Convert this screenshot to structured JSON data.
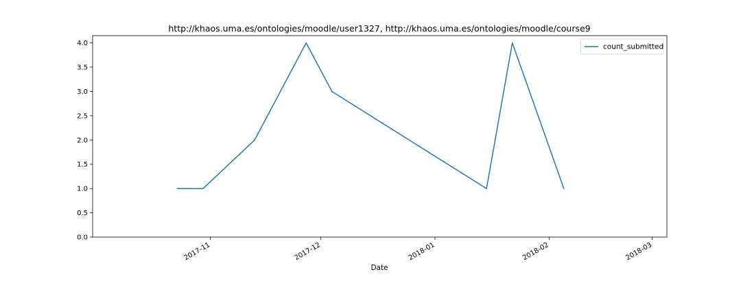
{
  "chart_data": {
    "type": "line",
    "title": "http://khaos.uma.es/ontologies/moodle/user1327, http://khaos.uma.es/ontologies/moodle/course9",
    "xlabel": "Date",
    "ylabel": "",
    "x_type": "date",
    "xlim": [
      "2017-09-30",
      "2018-03-05"
    ],
    "ylim": [
      0,
      4.15
    ],
    "x_ticks": [
      {
        "date": "2017-11-01",
        "label": "2017-11"
      },
      {
        "date": "2017-12-01",
        "label": "2017-12"
      },
      {
        "date": "2018-01-01",
        "label": "2018-01"
      },
      {
        "date": "2018-02-01",
        "label": "2018-02"
      },
      {
        "date": "2018-03-01",
        "label": "2018-03"
      }
    ],
    "y_ticks": [
      {
        "value": 0.0,
        "label": "0.0"
      },
      {
        "value": 0.5,
        "label": "0.5"
      },
      {
        "value": 1.0,
        "label": "1.0"
      },
      {
        "value": 1.5,
        "label": "1.5"
      },
      {
        "value": 2.0,
        "label": "2.0"
      },
      {
        "value": 2.5,
        "label": "2.5"
      },
      {
        "value": 3.0,
        "label": "3.0"
      },
      {
        "value": 3.5,
        "label": "3.5"
      },
      {
        "value": 4.0,
        "label": "4.0"
      }
    ],
    "grid": false,
    "legend_position": "top-right",
    "series": [
      {
        "name": "count_submitted",
        "color": "#1f77b4",
        "points": [
          {
            "x": "2017-10-23",
            "y": 1
          },
          {
            "x": "2017-10-30",
            "y": 1
          },
          {
            "x": "2017-11-13",
            "y": 2
          },
          {
            "x": "2017-11-27",
            "y": 4
          },
          {
            "x": "2017-12-04",
            "y": 3
          },
          {
            "x": "2018-01-15",
            "y": 1
          },
          {
            "x": "2018-01-22",
            "y": 4
          },
          {
            "x": "2018-02-05",
            "y": 1
          }
        ]
      }
    ]
  }
}
